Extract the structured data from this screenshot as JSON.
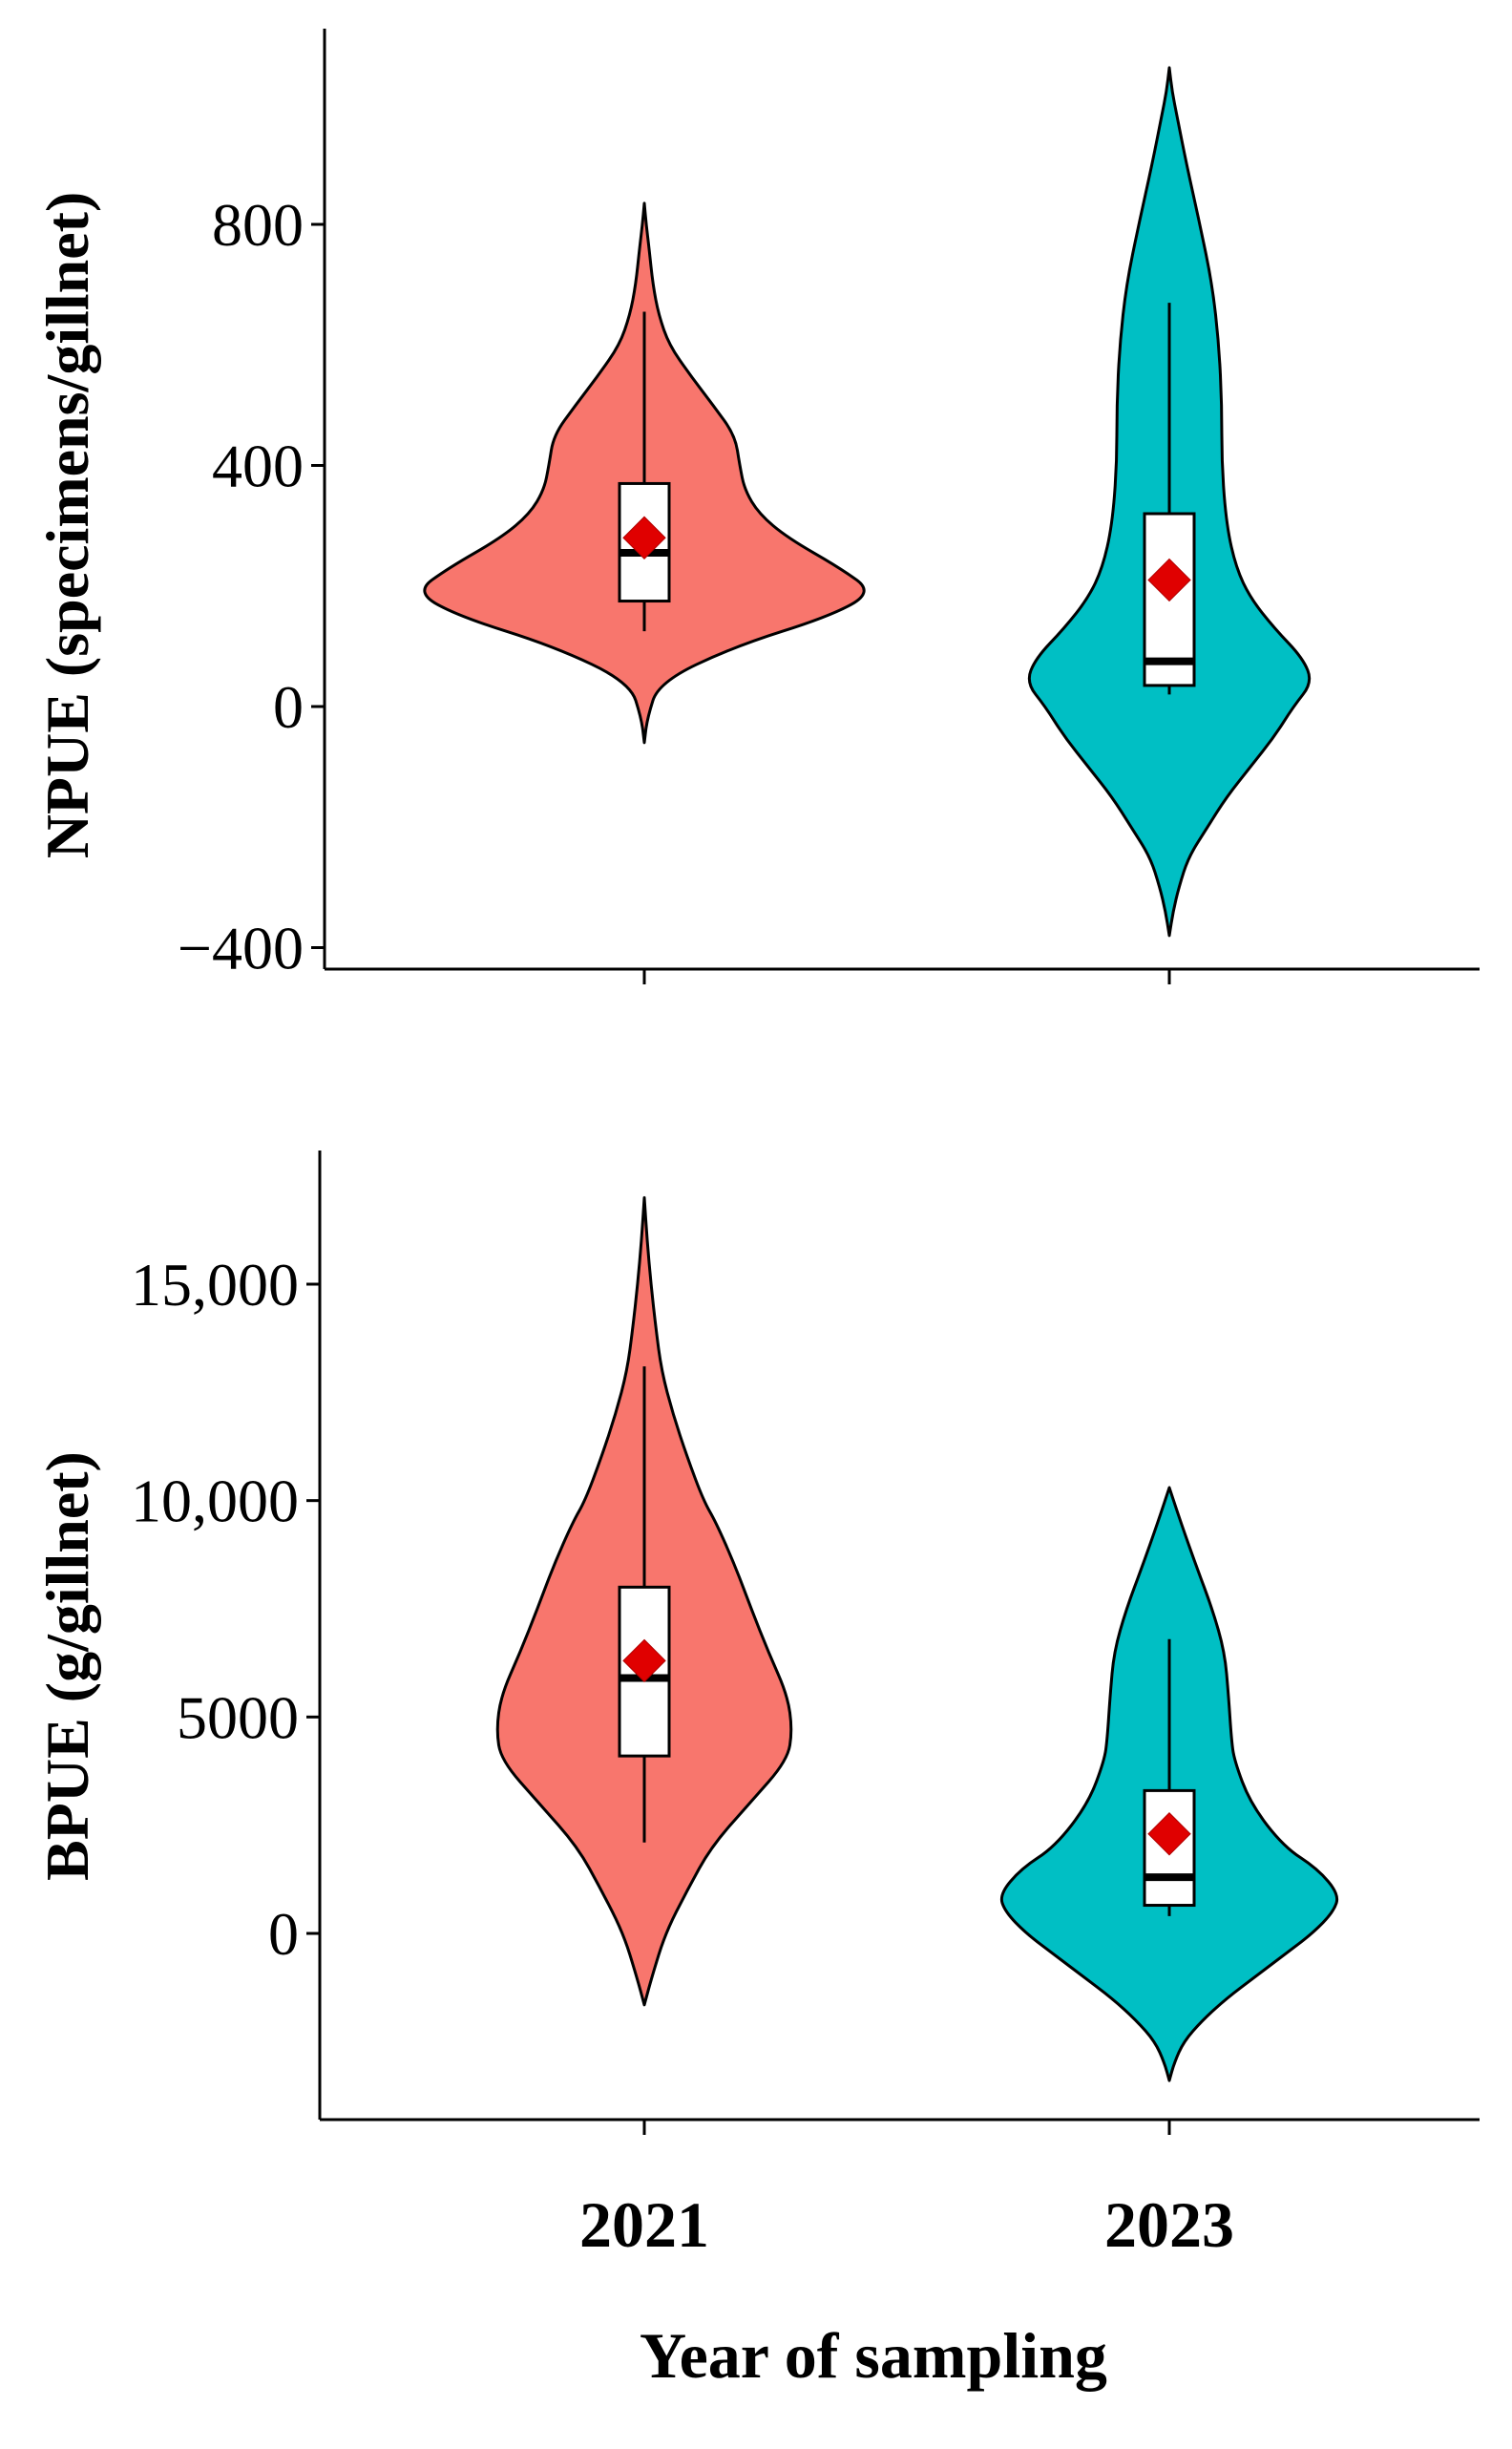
{
  "figure": {
    "x_title": "Year of sampling",
    "categories": [
      "2021",
      "2023"
    ]
  },
  "colors": {
    "2021": "#F8766D",
    "2023": "#00BFC4",
    "mean_marker": "#E00000",
    "box_fill": "#FFFFFF",
    "outline": "#000000"
  },
  "chart_data": [
    {
      "type": "violin",
      "ylabel": "NPUE (specimens/gillnet)",
      "ylim": [
        -500,
        1150
      ],
      "yticks": [
        -400,
        0,
        400,
        800
      ],
      "ytick_labels": [
        "−400",
        "0",
        "400",
        "800"
      ],
      "categories": [
        "2021",
        "2023"
      ],
      "groups": [
        {
          "name": "2021",
          "min": 125,
          "q1": 175,
          "median": 255,
          "q3": 370,
          "max": 655,
          "mean": 280,
          "density": {
            "y": [
              -60,
              -20,
              40,
              100,
              150,
              190,
              230,
              280,
              320,
              360,
              400,
              450,
              500,
              550,
              600,
              650,
              700,
              760,
              800,
              835
            ],
            "half_width": [
              0,
              3,
              15,
              95,
              195,
              240,
              205,
              150,
              120,
              105,
              100,
              95,
              72,
              48,
              26,
              15,
              9,
              5,
              2,
              0
            ]
          }
        },
        {
          "name": "2023",
          "min": 20,
          "q1": 35,
          "median": 75,
          "q3": 320,
          "max": 670,
          "mean": 210,
          "density": {
            "y": [
              -380,
              -340,
              -300,
              -250,
              -200,
              -150,
              -100,
              -50,
              0,
              40,
              80,
              130,
              180,
              230,
              300,
              400,
              500,
              600,
              700,
              800,
              900,
              980,
              1020,
              1060
            ],
            "half_width": [
              0,
              4,
              10,
              20,
              40,
              60,
              85,
              110,
              130,
              150,
              140,
              110,
              85,
              70,
              60,
              55,
              55,
              52,
              45,
              32,
              18,
              8,
              3,
              0
            ]
          }
        }
      ]
    },
    {
      "type": "violin",
      "ylabel": "BPUE (g/gillnet)",
      "ylim": [
        -4300,
        18200
      ],
      "yticks": [
        0,
        5000,
        10000,
        15000
      ],
      "ytick_labels": [
        "0",
        "5000",
        "10,000",
        "15,000"
      ],
      "categories": [
        "2021",
        "2023"
      ],
      "groups": [
        {
          "name": "2021",
          "min": 2100,
          "q1": 4100,
          "median": 5900,
          "q3": 8000,
          "max": 13100,
          "mean": 6300,
          "density": {
            "y": [
              -1650,
              -1000,
              0,
              1000,
              2000,
              3000,
              4000,
              4700,
              5500,
              6500,
              7500,
              8500,
              9500,
              10000,
              11000,
              12000,
              13000,
              14000,
              15000,
              16000,
              17000
            ],
            "half_width": [
              0,
              8,
              22,
              45,
              70,
              110,
              150,
              155,
              150,
              130,
              112,
              95,
              75,
              62,
              45,
              30,
              18,
              12,
              7,
              3,
              0
            ]
          }
        },
        {
          "name": "2023",
          "min": 400,
          "q1": 650,
          "median": 1300,
          "q3": 3300,
          "max": 6800,
          "mean": 2300,
          "density": {
            "y": [
              -3400,
              -3000,
              -2500,
              -2000,
              -1500,
              -1000,
              -500,
              0,
              500,
              900,
              1500,
              2000,
              3000,
              4000,
              4500,
              5500,
              6500,
              7500,
              8500,
              9500,
              10300
            ],
            "half_width": [
              0,
              5,
              15,
              35,
              60,
              90,
              120,
              150,
              172,
              178,
              155,
              120,
              85,
              68,
              65,
              62,
              58,
              45,
              28,
              12,
              0
            ]
          }
        }
      ]
    }
  ]
}
